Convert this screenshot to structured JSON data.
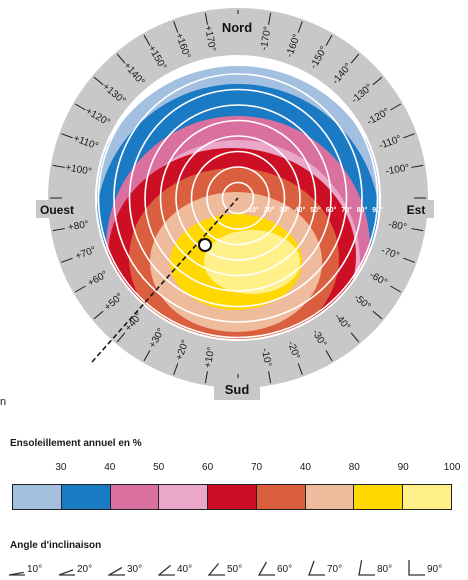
{
  "diagram": {
    "north": "Nord",
    "south": "Sud",
    "east": "Est",
    "west": "Ouest",
    "azimuth_left_labels": [
      "+170°",
      "+160°",
      "+150°",
      "+140°",
      "+130°",
      "+120°",
      "+110°",
      "+100°",
      "+80°",
      "+70°",
      "+60°",
      "+50°",
      "+40°",
      "+30°",
      "+20°",
      "+10°"
    ],
    "azimuth_right_labels": [
      "-170°",
      "-160°",
      "-150°",
      "-140°",
      "-130°",
      "-120°",
      "-110°",
      "-100°",
      "-80°",
      "-70°",
      "-60°",
      "-50°",
      "-40°",
      "-30°",
      "-20°",
      "-10°"
    ],
    "tilt_scale_labels": [
      "10°",
      "20°",
      "30°",
      "40°",
      "50°",
      "60°",
      "70°",
      "80°",
      "90°"
    ],
    "stray_text": "n"
  },
  "legend": {
    "title": "Ensoleillement annuel en %",
    "ticks": [
      "30",
      "40",
      "50",
      "60",
      "70",
      "40",
      "80",
      "90",
      "100"
    ],
    "colors": [
      "#a3c0e0",
      "#1a7ac4",
      "#d9709f",
      "#eba7c9",
      "#cc0f25",
      "#d95f3f",
      "#efbb9d",
      "#ffd800",
      "#fff08a"
    ]
  },
  "angles": {
    "title": "Angle d'inclinaison",
    "items": [
      {
        "angle": 10,
        "label": "10°"
      },
      {
        "angle": 20,
        "label": "20°"
      },
      {
        "angle": 30,
        "label": "30°"
      },
      {
        "angle": 40,
        "label": "40°"
      },
      {
        "angle": 50,
        "label": "50°"
      },
      {
        "angle": 60,
        "label": "60°"
      },
      {
        "angle": 70,
        "label": "70°"
      },
      {
        "angle": 80,
        "label": "80°"
      },
      {
        "angle": 90,
        "label": "90°"
      }
    ]
  }
}
